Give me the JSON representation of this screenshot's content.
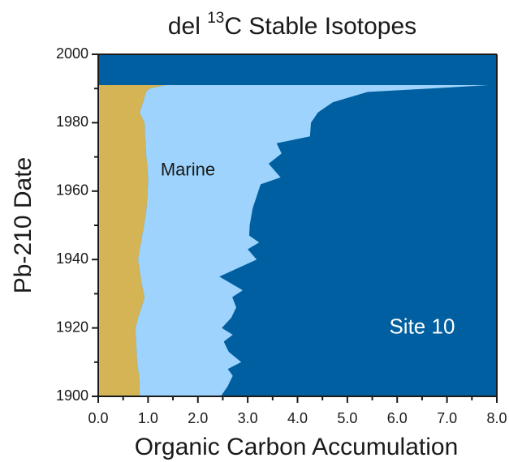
{
  "chart_data": {
    "type": "area",
    "orientation": "horizontal",
    "stacked": true,
    "title_parts": [
      "del ",
      "13",
      "C Stable Isotopes"
    ],
    "xlabel": "Organic Carbon Accumulation",
    "ylabel": "Pb-210 Date",
    "background_color": "#005fa0",
    "annotations": [
      {
        "text": "Marine",
        "x": 1.8,
        "y": 1966
      },
      {
        "text": "Site 10",
        "x": 6.5,
        "y": 1920
      }
    ],
    "y": [
      1900,
      1903,
      1906,
      1908,
      1910,
      1913,
      1916,
      1918,
      1920,
      1923,
      1926,
      1929,
      1931,
      1935,
      1940,
      1943,
      1945,
      1947,
      1950,
      1955,
      1962,
      1964,
      1968,
      1971,
      1974,
      1976,
      1980,
      1983,
      1986,
      1989,
      1990,
      1991
    ],
    "series": [
      {
        "color": "#d4b455",
        "values": [
          0.83,
          0.83,
          0.82,
          0.8,
          0.78,
          0.77,
          0.76,
          0.75,
          0.75,
          0.8,
          0.87,
          0.93,
          0.9,
          0.85,
          0.8,
          0.83,
          0.86,
          0.88,
          0.92,
          0.97,
          1.0,
          1.0,
          0.98,
          0.96,
          0.95,
          0.94,
          0.93,
          0.83,
          0.9,
          0.96,
          1.03,
          1.35
        ]
      },
      {
        "color": "#9dd3fc",
        "values": [
          1.63,
          1.77,
          1.88,
          1.8,
          2.09,
          1.85,
          1.76,
          1.95,
          1.73,
          1.87,
          1.9,
          1.76,
          2.0,
          1.58,
          2.38,
          2.17,
          2.37,
          2.15,
          2.12,
          2.13,
          2.26,
          2.66,
          2.44,
          2.72,
          2.63,
          3.31,
          3.34,
          3.58,
          3.81,
          4.45,
          5.63,
          6.48
        ]
      }
    ],
    "xlim": [
      0,
      8
    ],
    "ylim": [
      1900,
      2000
    ],
    "xticks": [
      {
        "value": 0,
        "label": "0.0"
      },
      {
        "value": 1,
        "label": "1.0"
      },
      {
        "value": 2,
        "label": "2.0"
      },
      {
        "value": 3,
        "label": "3.0"
      },
      {
        "value": 4,
        "label": "4.0"
      },
      {
        "value": 5,
        "label": "5.0"
      },
      {
        "value": 6,
        "label": "6.0"
      },
      {
        "value": 7,
        "label": "7.0"
      },
      {
        "value": 8,
        "label": "8.0"
      }
    ],
    "xminorticks": [
      0.5,
      1.5,
      2.5,
      3.5,
      4.5,
      5.5,
      6.5,
      7.5
    ],
    "yticks": [
      1900,
      1920,
      1940,
      1960,
      1980,
      2000
    ],
    "yminorticks": [
      1910,
      1930,
      1950,
      1970,
      1990
    ]
  }
}
